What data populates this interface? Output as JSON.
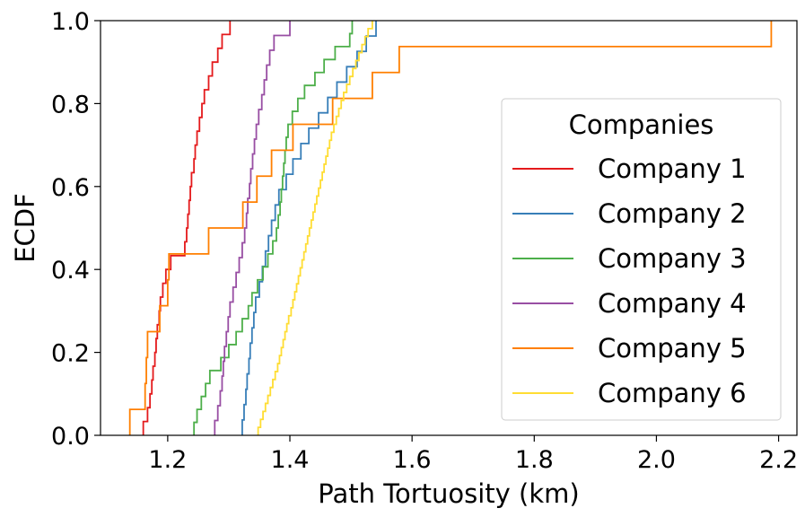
{
  "chart_data": {
    "type": "line",
    "step": "ecdf",
    "xlabel": "Path Tortuosity (km)",
    "ylabel": "ECDF",
    "xlim": [
      1.09,
      2.23
    ],
    "ylim": [
      0.0,
      1.0
    ],
    "xticks": [
      1.2,
      1.4,
      1.6,
      1.8,
      2.0,
      2.2
    ],
    "xtick_labels": [
      "1.2",
      "1.4",
      "1.6",
      "1.8",
      "2.0",
      "2.2"
    ],
    "yticks": [
      0.0,
      0.2,
      0.4,
      0.6,
      0.8,
      1.0
    ],
    "ytick_labels": [
      "0.0",
      "0.2",
      "0.4",
      "0.6",
      "0.8",
      "1.0"
    ],
    "grid": false,
    "legend": {
      "title": "Companies",
      "position": "center-right"
    },
    "series": [
      {
        "name": "Company 1",
        "color": "#e41a1c",
        "x": [
          1.16,
          1.167,
          1.171,
          1.174,
          1.176,
          1.179,
          1.181,
          1.183,
          1.186,
          1.188,
          1.192,
          1.197,
          1.205,
          1.228,
          1.231,
          1.233,
          1.235,
          1.237,
          1.239,
          1.243,
          1.245,
          1.248,
          1.252,
          1.256,
          1.26,
          1.267,
          1.273,
          1.282,
          1.289,
          1.302
        ]
      },
      {
        "name": "Company 2",
        "color": "#377eb8",
        "x": [
          1.322,
          1.325,
          1.328,
          1.33,
          1.333,
          1.335,
          1.338,
          1.341,
          1.344,
          1.35,
          1.355,
          1.36,
          1.365,
          1.37,
          1.376,
          1.382,
          1.394,
          1.405,
          1.418,
          1.431,
          1.447,
          1.462,
          1.477,
          1.493,
          1.51,
          1.525,
          1.541
        ]
      },
      {
        "name": "Company 3",
        "color": "#4daf4a",
        "x": [
          1.243,
          1.248,
          1.255,
          1.262,
          1.269,
          1.287,
          1.3,
          1.312,
          1.322,
          1.332,
          1.338,
          1.347,
          1.356,
          1.364,
          1.372,
          1.378,
          1.381,
          1.384,
          1.386,
          1.388,
          1.39,
          1.392,
          1.394,
          1.397,
          1.404,
          1.413,
          1.424,
          1.441,
          1.456,
          1.474,
          1.498,
          1.502
        ]
      },
      {
        "name": "Company 4",
        "color": "#984ea3",
        "x": [
          1.277,
          1.282,
          1.286,
          1.289,
          1.291,
          1.293,
          1.296,
          1.299,
          1.302,
          1.307,
          1.312,
          1.317,
          1.322,
          1.326,
          1.329,
          1.331,
          1.334,
          1.336,
          1.339,
          1.342,
          1.345,
          1.349,
          1.354,
          1.358,
          1.362,
          1.367,
          1.374,
          1.4
        ]
      },
      {
        "name": "Company 5",
        "color": "#ff7f00",
        "x": [
          1.138,
          1.163,
          1.165,
          1.167,
          1.187,
          1.2,
          1.202,
          1.267,
          1.323,
          1.346,
          1.37,
          1.405,
          1.47,
          1.535,
          1.579,
          2.188
        ]
      },
      {
        "name": "Company 6",
        "color": "#ffdd33",
        "x": [
          1.348,
          1.352,
          1.356,
          1.36,
          1.364,
          1.368,
          1.372,
          1.376,
          1.38,
          1.383,
          1.386,
          1.389,
          1.392,
          1.395,
          1.398,
          1.402,
          1.405,
          1.408,
          1.411,
          1.414,
          1.417,
          1.42,
          1.423,
          1.426,
          1.429,
          1.432,
          1.435,
          1.438,
          1.441,
          1.444,
          1.447,
          1.45,
          1.453,
          1.456,
          1.459,
          1.462,
          1.465,
          1.468,
          1.472,
          1.476,
          1.48,
          1.484,
          1.488,
          1.493,
          1.498,
          1.503,
          1.508,
          1.513,
          1.518,
          1.523,
          1.528,
          1.535
        ]
      }
    ]
  }
}
